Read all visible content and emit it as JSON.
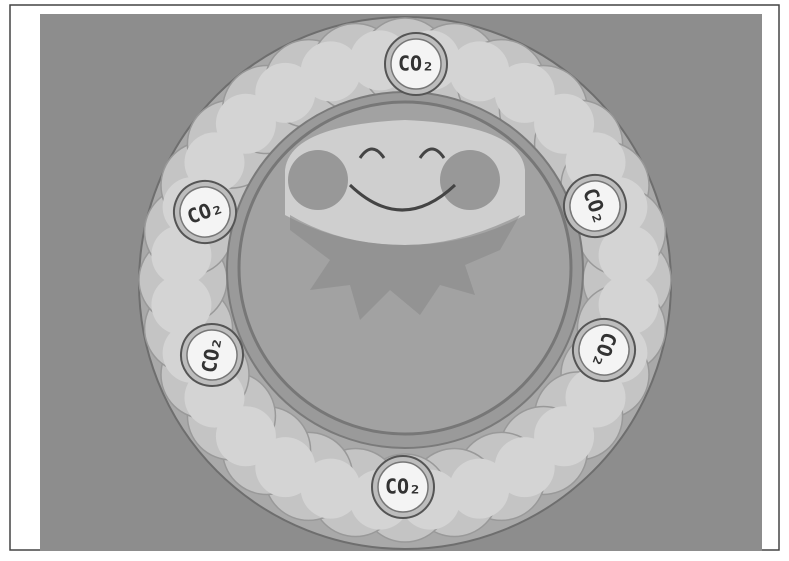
{
  "illustration": {
    "badges": [
      {
        "label": "CO₂"
      },
      {
        "label": "CO₂"
      },
      {
        "label": "CO₂"
      },
      {
        "label": "CO₂"
      },
      {
        "label": "CO₂"
      },
      {
        "label": "CO₂"
      }
    ]
  }
}
